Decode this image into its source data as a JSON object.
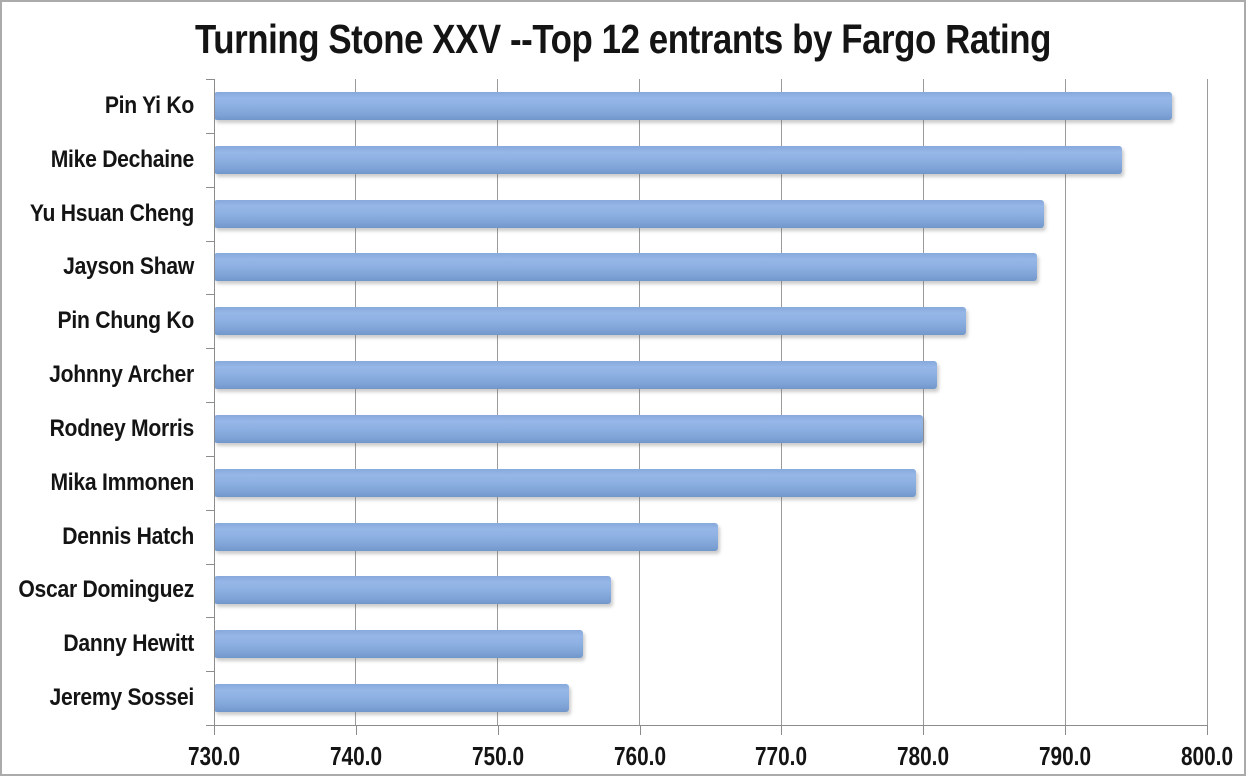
{
  "title": "Turning Stone XXV --Top 12 entrants by Fargo Rating",
  "chart_data": {
    "type": "bar",
    "orientation": "horizontal",
    "title": "Turning Stone XXV --Top 12 entrants by Fargo Rating",
    "categories": [
      "Pin Yi Ko",
      "Mike Dechaine",
      "Yu Hsuan Cheng",
      "Jayson Shaw",
      "Pin Chung Ko",
      "Johnny Archer",
      "Rodney Morris",
      "Mika Immonen",
      "Dennis Hatch",
      "Oscar Dominguez",
      "Danny Hewitt",
      "Jeremy Sossei"
    ],
    "values": [
      797.5,
      794,
      788.5,
      788,
      783,
      781,
      780,
      779.5,
      765.5,
      758,
      756,
      755
    ],
    "xlabel": "",
    "ylabel": "",
    "xlim": [
      730,
      800
    ],
    "xtick_labels": [
      "730.0",
      "740.0",
      "750.0",
      "760.0",
      "770.0",
      "780.0",
      "790.0",
      "800.0"
    ],
    "grid": true,
    "legend": false
  },
  "colors": {
    "bar": "#8BAFE1",
    "gridline": "#9b9b9b",
    "axis": "#8c8c8c",
    "text": "#141414",
    "background": "#ffffff",
    "border": "#ababab"
  }
}
